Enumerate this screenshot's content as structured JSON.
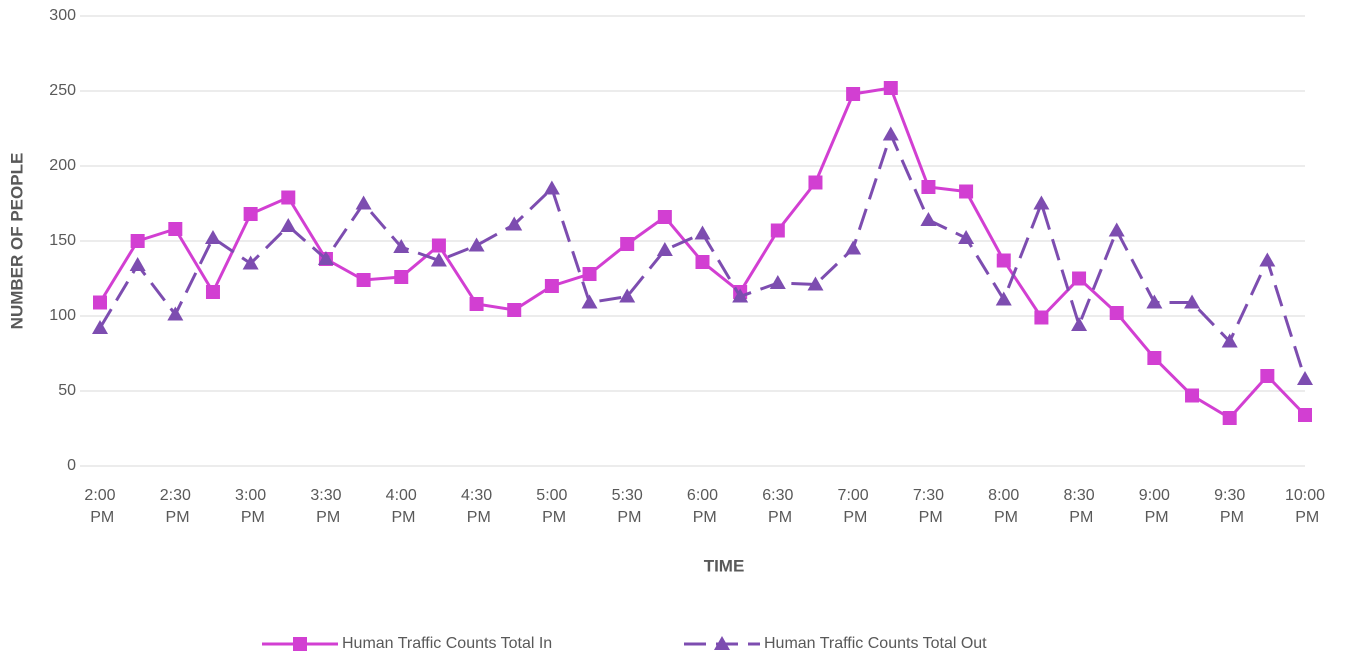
{
  "chart_data": {
    "type": "line",
    "x_label": "TIME",
    "y_label": "NUMBER OF PEOPLE",
    "categories": [
      "2:00 PM",
      null,
      "2:30 PM",
      null,
      "3:00 PM",
      null,
      "3:30 PM",
      null,
      "4:00 PM",
      null,
      "4:30 PM",
      null,
      "5:00 PM",
      null,
      "5:30 PM",
      null,
      "6:00 PM",
      null,
      "6:30 PM",
      null,
      "7:00 PM",
      null,
      "7:30 PM",
      null,
      "8:00 PM",
      null,
      "8:30 PM",
      null,
      "9:00 PM",
      null,
      "9:30 PM",
      null,
      "10:00 PM"
    ],
    "series": [
      {
        "name": "Human Traffic Counts Total In",
        "color": "#d23fd2",
        "marker": "square",
        "dash": false,
        "values": [
          109,
          150,
          158,
          116,
          168,
          179,
          138,
          124,
          126,
          147,
          108,
          104,
          120,
          128,
          148,
          166,
          136,
          116,
          157,
          189,
          248,
          252,
          186,
          183,
          137,
          99,
          125,
          102,
          72,
          47,
          32,
          60,
          34
        ]
      },
      {
        "name": "Human Traffic Counts Total Out",
        "color": "#7d4db0",
        "marker": "triangle",
        "dash": true,
        "values": [
          92,
          134,
          101,
          152,
          135,
          160,
          138,
          175,
          146,
          137,
          147,
          161,
          185,
          109,
          113,
          144,
          155,
          113,
          122,
          121,
          145,
          221,
          164,
          152,
          111,
          175,
          94,
          157,
          109,
          109,
          83,
          137,
          58
        ]
      }
    ],
    "ylim": [
      0,
      300
    ],
    "yticks": [
      0,
      50,
      100,
      150,
      200,
      250,
      300
    ],
    "grid": true,
    "legend": "bottom"
  }
}
